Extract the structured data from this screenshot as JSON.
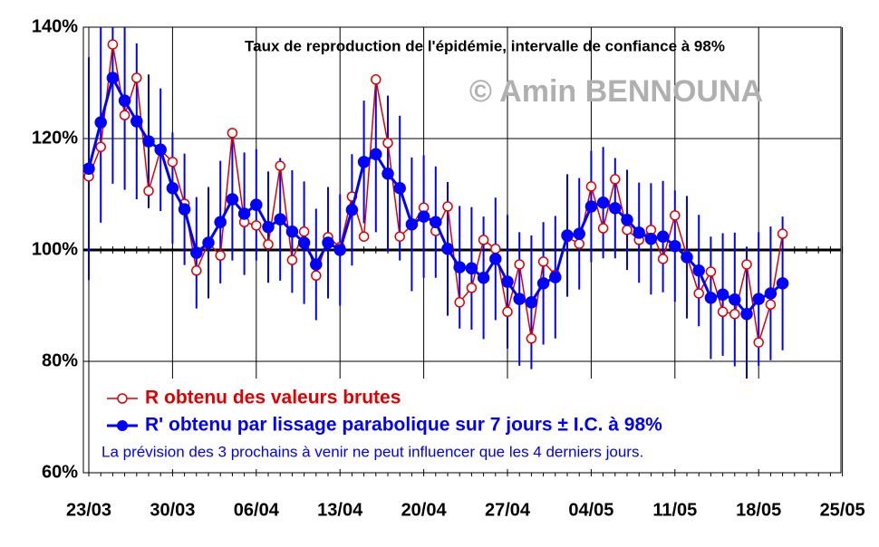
{
  "chart_data": {
    "type": "line",
    "title": "Taux de reproduction de l'épidémie, intervalle de confiance à 98%",
    "watermark": "© Amin BENNOUNA",
    "note": "La prévision des 3 prochains à venir ne peut influencer que les 4 derniers jours.",
    "categories": [
      "23/03",
      null,
      null,
      null,
      null,
      null,
      null,
      "30/03",
      null,
      null,
      null,
      null,
      null,
      null,
      "06/04",
      null,
      null,
      null,
      null,
      null,
      null,
      "13/04",
      null,
      null,
      null,
      null,
      null,
      null,
      "20/04",
      null,
      null,
      null,
      null,
      null,
      null,
      "27/04",
      null,
      null,
      null,
      null,
      null,
      null,
      "04/05",
      null,
      null,
      null,
      null,
      null,
      null,
      "11/05",
      null,
      null,
      null,
      null,
      null,
      null,
      "18/05",
      null,
      null,
      null,
      null,
      null,
      null,
      "25/05"
    ],
    "series": [
      {
        "name": "R obtenu des valeurs brutes",
        "color": "#e00000",
        "values": [
          113.2,
          118.5,
          136.9,
          124.2,
          130.9,
          110.6,
          118.0,
          115.8,
          108.3,
          96.3,
          101.3,
          99.0,
          121.0,
          105.0,
          104.4,
          101.0,
          115.1,
          98.2,
          103.3,
          95.4,
          102.3,
          100.5,
          109.6,
          102.4,
          130.6,
          119.2,
          102.4,
          104.4,
          107.6,
          103.4,
          107.8,
          90.6,
          93.2,
          101.8,
          100.2,
          88.9,
          97.4,
          84.1,
          97.9,
          95.5,
          102.3,
          101.1,
          111.4,
          103.9,
          112.7,
          103.6,
          101.8,
          103.6,
          98.4,
          106.2,
          98.9,
          92.2,
          96.1,
          88.9,
          88.5,
          97.4,
          83.4,
          90.2,
          102.9,
          null,
          null,
          null,
          null,
          null
        ]
      },
      {
        "name": "R' obtenu par lissage parabolique sur 7 jours ± I.C. à 98%",
        "color": "#0000ff",
        "values": [
          114.6,
          122.9,
          130.9,
          126.8,
          123.1,
          119.5,
          118.0,
          111.1,
          107.3,
          99.5,
          101.3,
          105.0,
          109.1,
          106.5,
          108.1,
          104.1,
          105.5,
          103.3,
          101.3,
          97.4,
          101.3,
          100.0,
          107.2,
          115.8,
          117.2,
          113.7,
          111.1,
          104.6,
          106.0,
          105.0,
          100.2,
          96.9,
          96.7,
          95.0,
          98.4,
          94.3,
          91.2,
          90.6,
          94.0,
          95.1,
          102.6,
          102.9,
          107.8,
          108.5,
          107.5,
          105.4,
          103.1,
          102.0,
          102.4,
          100.7,
          98.7,
          96.3,
          91.4,
          92.0,
          91.1,
          88.5,
          91.2,
          92.2,
          94.0,
          null,
          null,
          null,
          null,
          null
        ],
        "errors": [
          20,
          18,
          19,
          16,
          14,
          12,
          11,
          10,
          10,
          10,
          10,
          11,
          11,
          11,
          10,
          10,
          11,
          11,
          11,
          10,
          10,
          10,
          10,
          11,
          14,
          14,
          13,
          12,
          11,
          10,
          12,
          11,
          11,
          11,
          11,
          12,
          12,
          12,
          11,
          11,
          11,
          10,
          10,
          10,
          9,
          9,
          9,
          10,
          10,
          10,
          11,
          10,
          11,
          11,
          12,
          12,
          12,
          12,
          12,
          null,
          null,
          null,
          null,
          null
        ]
      }
    ],
    "ylim": [
      60,
      140
    ],
    "yticks": [
      {
        "value": 60,
        "label": "60%"
      },
      {
        "value": 80,
        "label": "80%"
      },
      {
        "value": 100,
        "label": "100%"
      },
      {
        "value": 120,
        "label": "120%"
      },
      {
        "value": 140,
        "label": "140%"
      }
    ],
    "reference_line": 100,
    "grid": true
  }
}
